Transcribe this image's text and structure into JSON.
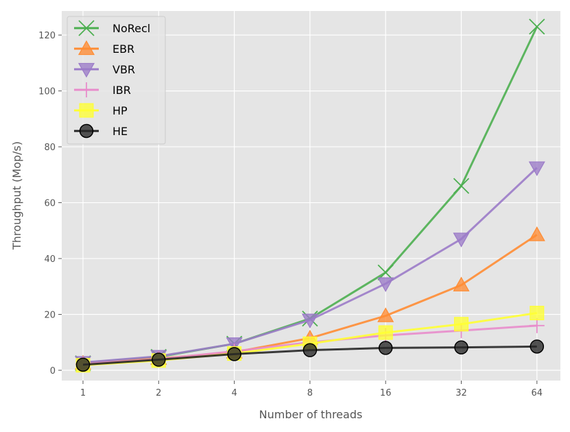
{
  "chart_data": {
    "type": "line",
    "xlabel": "Number of threads",
    "ylabel": "Throughput (Mop/s)",
    "x": [
      1,
      2,
      4,
      8,
      16,
      32,
      64
    ],
    "x_tick_labels": [
      "1",
      "2",
      "4",
      "8",
      "16",
      "32",
      "64"
    ],
    "x_scale": "log2",
    "ylim": [
      -4,
      127
    ],
    "y_ticks": [
      0,
      20,
      40,
      60,
      80,
      100,
      120
    ],
    "grid": true,
    "legend_position": "top-left",
    "series": [
      {
        "name": "NoRecl",
        "color": "#4caf50",
        "marker": "x",
        "values": [
          2.5,
          4.8,
          9.5,
          18.5,
          35,
          66,
          123
        ]
      },
      {
        "name": "EBR",
        "color": "#ff8c33",
        "marker": "triangle-up",
        "values": [
          2.5,
          4.2,
          6.5,
          11.5,
          19.5,
          30.5,
          48.5
        ]
      },
      {
        "name": "VBR",
        "color": "#9b7bc8",
        "marker": "triangle-down",
        "values": [
          2.8,
          5.0,
          9.5,
          18,
          31,
          47,
          72.5
        ]
      },
      {
        "name": "IBR",
        "color": "#e88ccb",
        "marker": "plus",
        "values": [
          2.2,
          4.0,
          6.8,
          10,
          12.5,
          14.2,
          16
        ]
      },
      {
        "name": "HP",
        "color": "#ffff33",
        "marker": "square",
        "values": [
          1.8,
          3.5,
          6.0,
          9.5,
          13.5,
          16.5,
          20.5
        ]
      },
      {
        "name": "HE",
        "color": "#262626",
        "marker": "circle",
        "values": [
          2.0,
          3.8,
          5.8,
          7.2,
          8.0,
          8.2,
          8.5
        ]
      }
    ]
  }
}
